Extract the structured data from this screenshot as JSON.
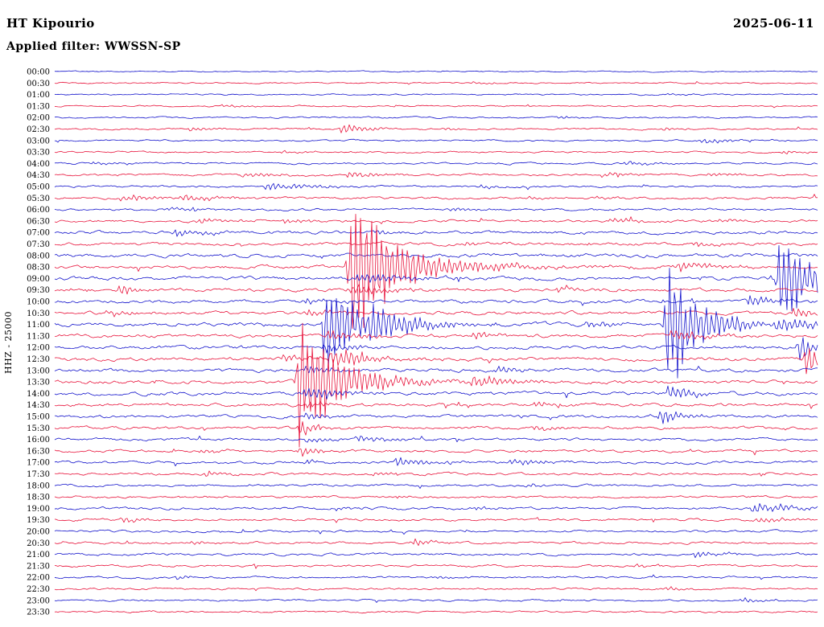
{
  "header": {
    "station": "HT Kipourio",
    "date": "2025-06-11",
    "filter": "Applied filter: WWSSN-SP"
  },
  "axis": {
    "channel_label": "HHZ - 25000"
  },
  "chart_data": {
    "type": "line",
    "subtype": "helicorder",
    "title": "HT Kipourio",
    "date": "2025-06-11",
    "filter": "WWSSN-SP",
    "channel": "HHZ",
    "scale": 25000,
    "minutes_per_row": 30,
    "legend": "alternating blue/red half-hour traces, top row 00:00, bottom row 23:30",
    "palette": {
      "blue": "#1414cc",
      "red": "#e8143c"
    },
    "rows": [
      {
        "t": "00:00",
        "c": "b",
        "n": 0.7,
        "ev": []
      },
      {
        "t": "00:30",
        "c": "r",
        "n": 0.8,
        "ev": [
          [
            0.55,
            2,
            0.006
          ]
        ]
      },
      {
        "t": "01:00",
        "c": "b",
        "n": 0.8,
        "ev": [
          [
            0.8,
            2,
            0.005
          ]
        ]
      },
      {
        "t": "01:30",
        "c": "r",
        "n": 0.9,
        "ev": [
          [
            0.22,
            2.5,
            0.006
          ]
        ]
      },
      {
        "t": "02:00",
        "c": "b",
        "n": 0.9,
        "ev": [
          [
            0.66,
            2,
            0.005
          ]
        ]
      },
      {
        "t": "02:30",
        "c": "r",
        "n": 1.0,
        "ev": [
          [
            0.176,
            3,
            0.005
          ],
          [
            0.377,
            8,
            0.006
          ],
          [
            0.51,
            2.5,
            0.004
          ],
          [
            0.8,
            2.5,
            0.004
          ]
        ]
      },
      {
        "t": "03:00",
        "c": "b",
        "n": 1.0,
        "ev": [
          [
            0.85,
            3.5,
            0.01
          ]
        ]
      },
      {
        "t": "03:30",
        "c": "r",
        "n": 1.0,
        "ev": [
          [
            0.955,
            3,
            0.004
          ],
          [
            0.3,
            2.5,
            0.005
          ]
        ]
      },
      {
        "t": "04:00",
        "c": "b",
        "n": 1.1,
        "ev": [
          [
            0.05,
            2.5,
            0.008
          ],
          [
            0.75,
            2.5,
            0.008
          ]
        ]
      },
      {
        "t": "04:30",
        "c": "r",
        "n": 1.2,
        "ev": [
          [
            0.25,
            3.5,
            0.01
          ],
          [
            0.385,
            6,
            0.006
          ],
          [
            0.72,
            3,
            0.008
          ],
          [
            0.86,
            3,
            0.006
          ]
        ]
      },
      {
        "t": "05:00",
        "c": "b",
        "n": 1.2,
        "ev": [
          [
            0.28,
            6,
            0.01
          ],
          [
            0.56,
            2.5,
            0.005
          ]
        ]
      },
      {
        "t": "05:30",
        "c": "r",
        "n": 1.4,
        "ev": [
          [
            0.09,
            4,
            0.012
          ],
          [
            0.17,
            3.5,
            0.008
          ],
          [
            0.62,
            3,
            0.005
          ],
          [
            0.71,
            2.5,
            0.005
          ]
        ]
      },
      {
        "t": "06:00",
        "c": "b",
        "n": 1.3,
        "ev": [
          [
            0.15,
            3,
            0.008
          ],
          [
            0.52,
            2.5,
            0.006
          ]
        ]
      },
      {
        "t": "06:30",
        "c": "r",
        "n": 1.5,
        "ev": [
          [
            0.19,
            3.5,
            0.008
          ],
          [
            0.3,
            4,
            0.006
          ],
          [
            0.73,
            3.5,
            0.008
          ],
          [
            0.87,
            3,
            0.006
          ]
        ]
      },
      {
        "t": "07:00",
        "c": "b",
        "n": 1.8,
        "ev": [
          [
            0.16,
            4,
            0.01
          ],
          [
            0.42,
            3,
            0.006
          ]
        ]
      },
      {
        "t": "07:30",
        "c": "r",
        "n": 1.8,
        "ev": [
          [
            0.53,
            3,
            0.006
          ],
          [
            0.84,
            3,
            0.006
          ]
        ]
      },
      {
        "t": "08:00",
        "c": "b",
        "n": 2.2,
        "ev": []
      },
      {
        "t": "08:30",
        "c": "r",
        "n": 2.0,
        "ev": [
          [
            0.388,
            130,
            0.007
          ],
          [
            0.41,
            25,
            0.02
          ],
          [
            0.82,
            6,
            0.008
          ]
        ]
      },
      {
        "t": "09:00",
        "c": "b",
        "n": 2.0,
        "ev": [
          [
            0.952,
            65,
            0.008
          ],
          [
            0.4,
            8,
            0.01
          ]
        ]
      },
      {
        "t": "09:30",
        "c": "r",
        "n": 1.9,
        "ev": [
          [
            0.086,
            9,
            0.004
          ],
          [
            0.39,
            9,
            0.008
          ],
          [
            0.66,
            5,
            0.005
          ]
        ]
      },
      {
        "t": "10:00",
        "c": "b",
        "n": 2.0,
        "ev": [
          [
            0.91,
            12,
            0.005
          ],
          [
            0.33,
            4,
            0.006
          ]
        ]
      },
      {
        "t": "10:30",
        "c": "r",
        "n": 2.0,
        "ev": [
          [
            0.07,
            4,
            0.006
          ],
          [
            0.97,
            8,
            0.005
          ],
          [
            0.33,
            5,
            0.006
          ]
        ]
      },
      {
        "t": "11:00",
        "c": "b",
        "n": 2.2,
        "ev": [
          [
            0.356,
            85,
            0.007
          ],
          [
            0.418,
            25,
            0.009
          ],
          [
            0.805,
            95,
            0.008
          ],
          [
            0.7,
            6,
            0.006
          ],
          [
            0.95,
            9,
            0.01
          ]
        ]
      },
      {
        "t": "11:30",
        "c": "r",
        "n": 2.0,
        "ev": [
          [
            0.55,
            6,
            0.005
          ],
          [
            0.36,
            7,
            0.008
          ],
          [
            0.81,
            8,
            0.008
          ]
        ]
      },
      {
        "t": "12:00",
        "c": "b",
        "n": 2.0,
        "ev": [
          [
            0.975,
            20,
            0.005
          ],
          [
            0.355,
            9,
            0.006
          ]
        ]
      },
      {
        "t": "12:30",
        "c": "r",
        "n": 2.1,
        "ev": [
          [
            0.365,
            16,
            0.008
          ],
          [
            0.985,
            28,
            0.006
          ],
          [
            0.3,
            6,
            0.006
          ]
        ]
      },
      {
        "t": "13:00",
        "c": "b",
        "n": 2.0,
        "ev": [
          [
            0.33,
            7,
            0.006
          ],
          [
            0.58,
            5,
            0.006
          ]
        ]
      },
      {
        "t": "13:30",
        "c": "r",
        "n": 2.1,
        "ev": [
          [
            0.321,
            95,
            0.006
          ],
          [
            0.34,
            28,
            0.015
          ],
          [
            0.55,
            8,
            0.008
          ]
        ]
      },
      {
        "t": "14:00",
        "c": "b",
        "n": 2.0,
        "ev": [
          [
            0.33,
            10,
            0.007
          ],
          [
            0.805,
            12,
            0.006
          ]
        ]
      },
      {
        "t": "14:30",
        "c": "r",
        "n": 1.8,
        "ev": [
          [
            0.33,
            6,
            0.005
          ],
          [
            0.63,
            5,
            0.005
          ]
        ]
      },
      {
        "t": "15:00",
        "c": "b",
        "n": 1.8,
        "ev": [
          [
            0.795,
            14,
            0.005
          ],
          [
            0.33,
            6,
            0.005
          ]
        ]
      },
      {
        "t": "15:30",
        "c": "r",
        "n": 1.7,
        "ev": [
          [
            0.322,
            16,
            0.004
          ],
          [
            0.63,
            4,
            0.005
          ]
        ]
      },
      {
        "t": "16:00",
        "c": "b",
        "n": 1.6,
        "ev": [
          [
            0.4,
            5,
            0.008
          ],
          [
            0.33,
            5,
            0.004
          ]
        ]
      },
      {
        "t": "16:30",
        "c": "r",
        "n": 1.6,
        "ev": [
          [
            0.322,
            9,
            0.004
          ],
          [
            0.19,
            3,
            0.005
          ]
        ]
      },
      {
        "t": "17:00",
        "c": "b",
        "n": 1.6,
        "ev": [
          [
            0.45,
            6,
            0.01
          ],
          [
            0.6,
            4,
            0.008
          ],
          [
            0.33,
            4,
            0.004
          ]
        ]
      },
      {
        "t": "17:30",
        "c": "r",
        "n": 1.5,
        "ev": [
          [
            0.2,
            4,
            0.006
          ],
          [
            0.42,
            3,
            0.006
          ]
        ]
      },
      {
        "t": "18:00",
        "c": "b",
        "n": 1.4,
        "ev": [
          [
            0.62,
            2.5,
            0.005
          ]
        ]
      },
      {
        "t": "18:30",
        "c": "r",
        "n": 1.3,
        "ev": [
          [
            0.45,
            2.5,
            0.005
          ]
        ]
      },
      {
        "t": "19:00",
        "c": "b",
        "n": 1.5,
        "ev": [
          [
            0.92,
            7,
            0.012
          ],
          [
            0.37,
            3,
            0.005
          ],
          [
            0.55,
            3,
            0.005
          ]
        ]
      },
      {
        "t": "19:30",
        "c": "r",
        "n": 1.4,
        "ev": [
          [
            0.09,
            4.5,
            0.005
          ],
          [
            0.92,
            5,
            0.008
          ]
        ]
      },
      {
        "t": "20:00",
        "c": "b",
        "n": 1.3,
        "ev": []
      },
      {
        "t": "20:30",
        "c": "r",
        "n": 1.4,
        "ev": [
          [
            0.47,
            6,
            0.004
          ],
          [
            0.18,
            3,
            0.005
          ]
        ]
      },
      {
        "t": "21:00",
        "c": "b",
        "n": 1.4,
        "ev": [
          [
            0.84,
            4,
            0.008
          ]
        ]
      },
      {
        "t": "21:30",
        "c": "r",
        "n": 1.3,
        "ev": [
          [
            0.76,
            3,
            0.005
          ]
        ]
      },
      {
        "t": "22:00",
        "c": "b",
        "n": 1.2,
        "ev": [
          [
            0.16,
            3.5,
            0.004
          ],
          [
            0.5,
            3,
            0.005
          ]
        ]
      },
      {
        "t": "22:30",
        "c": "r",
        "n": 1.2,
        "ev": [
          [
            0.8,
            3,
            0.005
          ]
        ]
      },
      {
        "t": "23:00",
        "c": "b",
        "n": 1.1,
        "ev": [
          [
            0.9,
            3.5,
            0.006
          ]
        ]
      },
      {
        "t": "23:30",
        "c": "r",
        "n": 1.1,
        "ev": []
      }
    ]
  }
}
